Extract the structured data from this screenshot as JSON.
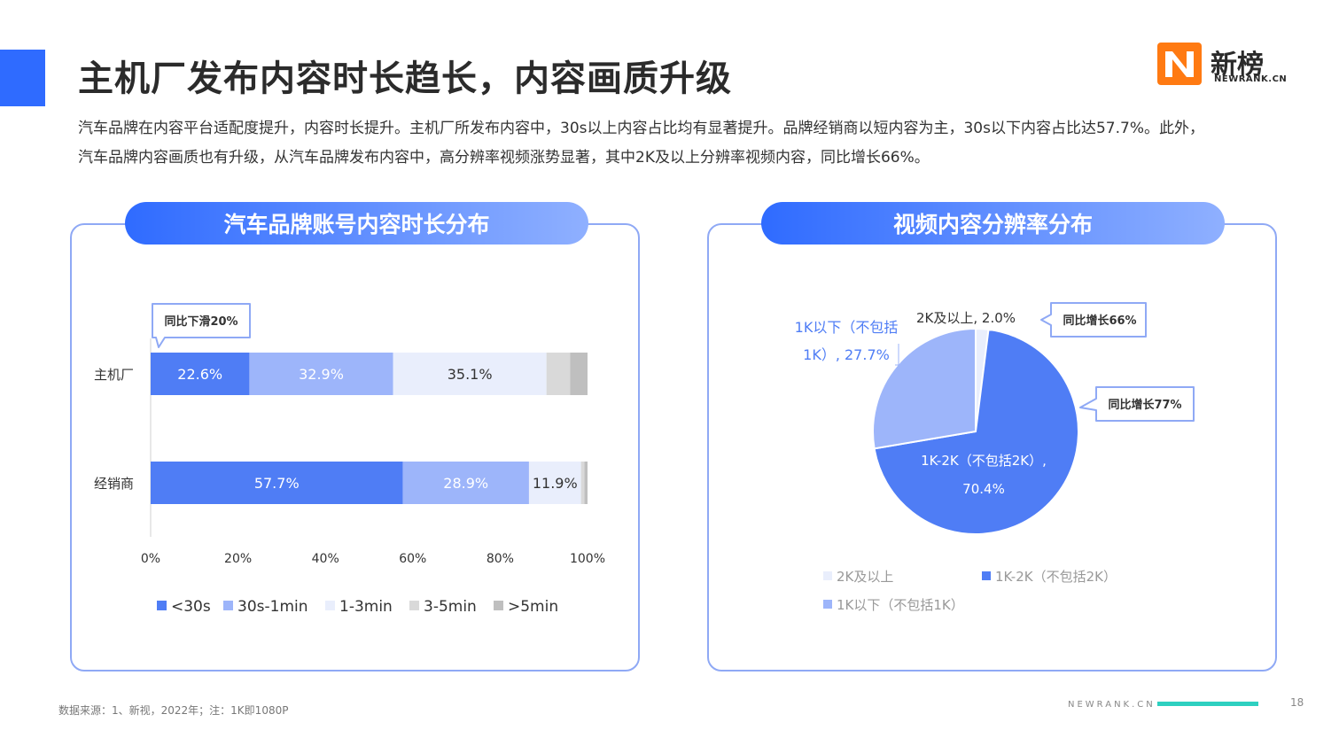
{
  "header": {
    "title": "主机厂发布内容时长趋长，内容画质升级",
    "logo_cn": "新榜",
    "logo_en": "NEWRANK.CN"
  },
  "summary": {
    "line1": "汽车品牌在内容平台适配度提升，内容时长提升。主机厂所发布内容中，30s以上内容占比均有显著提升。品牌经销商以短内容为主，30s以下内容占比达57.7%。此外，",
    "line2": "汽车品牌内容画质也有升级，从汽车品牌发布内容中，高分辨率视频涨势显著，其中2K及以上分辨率视频内容，同比增长66%。"
  },
  "panels": {
    "left_title": "汽车品牌账号内容时长分布",
    "right_title": "视频内容分辨率分布"
  },
  "chart_data": [
    {
      "type": "bar",
      "orientation": "horizontal",
      "stacked": true,
      "categories": [
        "主机厂",
        "经销商"
      ],
      "series": [
        {
          "name": "<30s",
          "color": "#4f7df5",
          "values": [
            22.6,
            57.7
          ],
          "labels": [
            "22.6%",
            "57.7%"
          ]
        },
        {
          "name": "30s-1min",
          "color": "#9db5fa",
          "values": [
            32.9,
            28.9
          ],
          "labels": [
            "32.9%",
            "28.9%"
          ]
        },
        {
          "name": "1-3min",
          "color": "#e9eefc",
          "values": [
            35.1,
            11.9
          ],
          "labels": [
            "35.1%",
            "11.9%"
          ]
        },
        {
          "name": "3-5min",
          "color": "#d9d9d9",
          "values": [
            5.4,
            0.8
          ],
          "labels": [
            "",
            ""
          ]
        },
        {
          "name": ">5min",
          "color": "#bfbfbf",
          "values": [
            4.0,
            0.7
          ],
          "labels": [
            "",
            ""
          ]
        }
      ],
      "xlim": [
        0,
        100
      ],
      "xticks": [
        "0%",
        "20%",
        "40%",
        "60%",
        "80%",
        "100%"
      ],
      "legend": "bottom",
      "annotations": [
        {
          "text": "同比下滑20%",
          "target": "主机厂"
        }
      ]
    },
    {
      "type": "pie",
      "slices": [
        {
          "name": "2K及以上",
          "value": 2.0,
          "color": "#e9eefc",
          "label": "2K及以上, 2.0%"
        },
        {
          "name": "1K-2K（不包括2K）",
          "value": 70.4,
          "color": "#4f7df5",
          "label_line1": "1K-2K（不包括2K）,",
          "label_line2": "70.4%"
        },
        {
          "name": "1K以下（不包括1K）",
          "value": 27.7,
          "color": "#9db5fa",
          "label_line1": "1K以下（不包括",
          "label_line2": "1K）, 27.7%"
        }
      ],
      "legend": "bottom-left",
      "annotations": [
        {
          "text": "同比增长66%",
          "target": "2K及以上"
        },
        {
          "text": "同比增长77%",
          "target": "1K-2K（不包括2K）"
        }
      ]
    }
  ],
  "footer": {
    "source": "数据来源：1、新视，2022年；注：1K即1080P",
    "site": "NEWRANK.CN",
    "page": "18"
  }
}
